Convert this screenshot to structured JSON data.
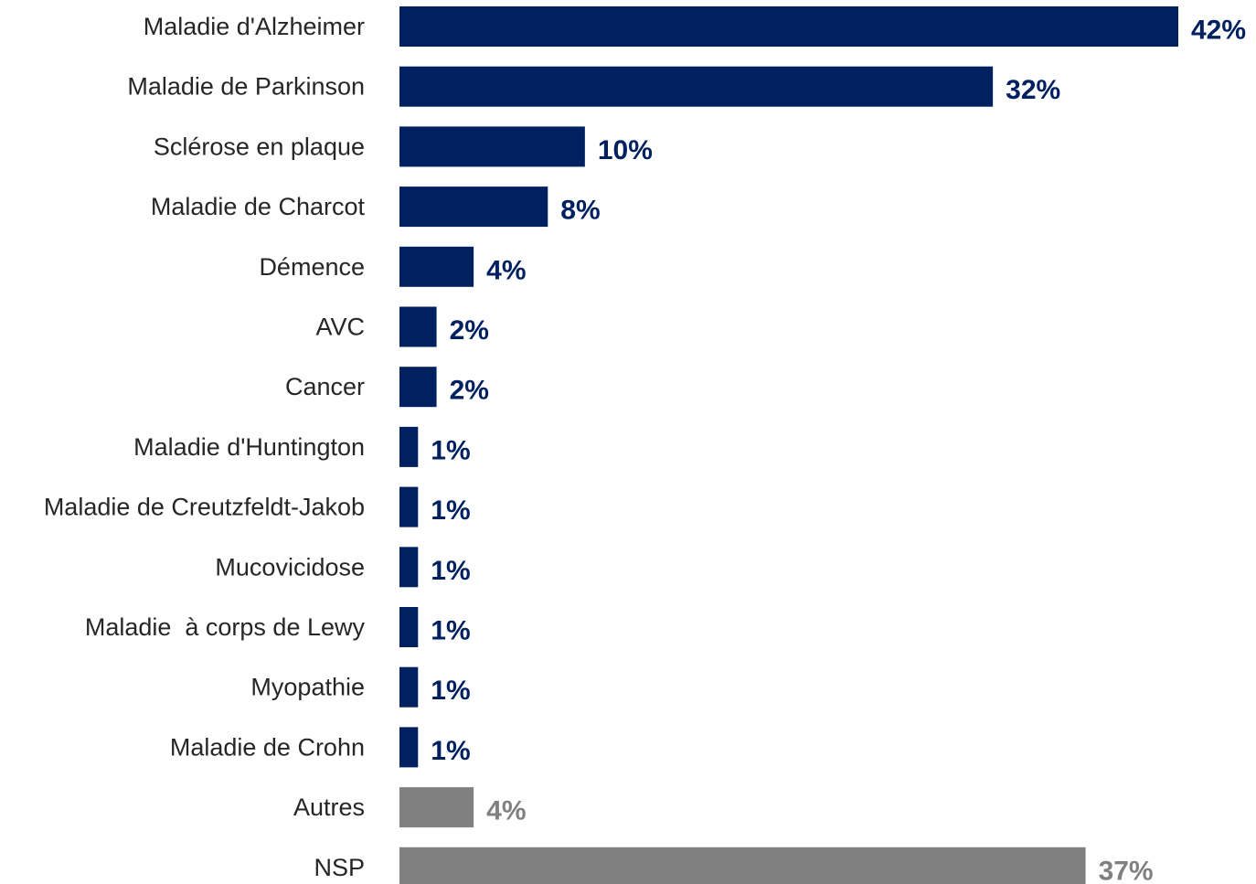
{
  "chart_data": {
    "type": "bar",
    "orientation": "horizontal",
    "categories": [
      "Maladie d'Alzheimer",
      "Maladie de Parkinson",
      "Sclérose en plaque",
      "Maladie de Charcot",
      "Démence",
      "AVC",
      "Cancer",
      "Maladie d'Huntington",
      "Maladie de Creutzfeldt-Jakob",
      "Mucovicidose",
      "Maladie  à corps de Lewy",
      "Myopathie",
      "Maladie de Crohn",
      "Autres",
      "NSP"
    ],
    "values": [
      42,
      32,
      10,
      8,
      4,
      2,
      2,
      1,
      1,
      1,
      1,
      1,
      1,
      4,
      37
    ],
    "value_labels": [
      "42%",
      "32%",
      "10%",
      "8%",
      "4%",
      "2%",
      "2%",
      "1%",
      "1%",
      "1%",
      "1%",
      "1%",
      "1%",
      "4%",
      "37%"
    ],
    "bar_colors": [
      "#002060",
      "#002060",
      "#002060",
      "#002060",
      "#002060",
      "#002060",
      "#002060",
      "#002060",
      "#002060",
      "#002060",
      "#002060",
      "#002060",
      "#002060",
      "#808080",
      "#808080"
    ],
    "label_colors": [
      "#002060",
      "#002060",
      "#002060",
      "#002060",
      "#002060",
      "#002060",
      "#002060",
      "#002060",
      "#002060",
      "#002060",
      "#002060",
      "#002060",
      "#002060",
      "#808080",
      "#808080"
    ],
    "xlim": [
      0,
      42
    ],
    "title": "",
    "xlabel": "",
    "ylabel": "",
    "grid": false,
    "legend": "none"
  }
}
